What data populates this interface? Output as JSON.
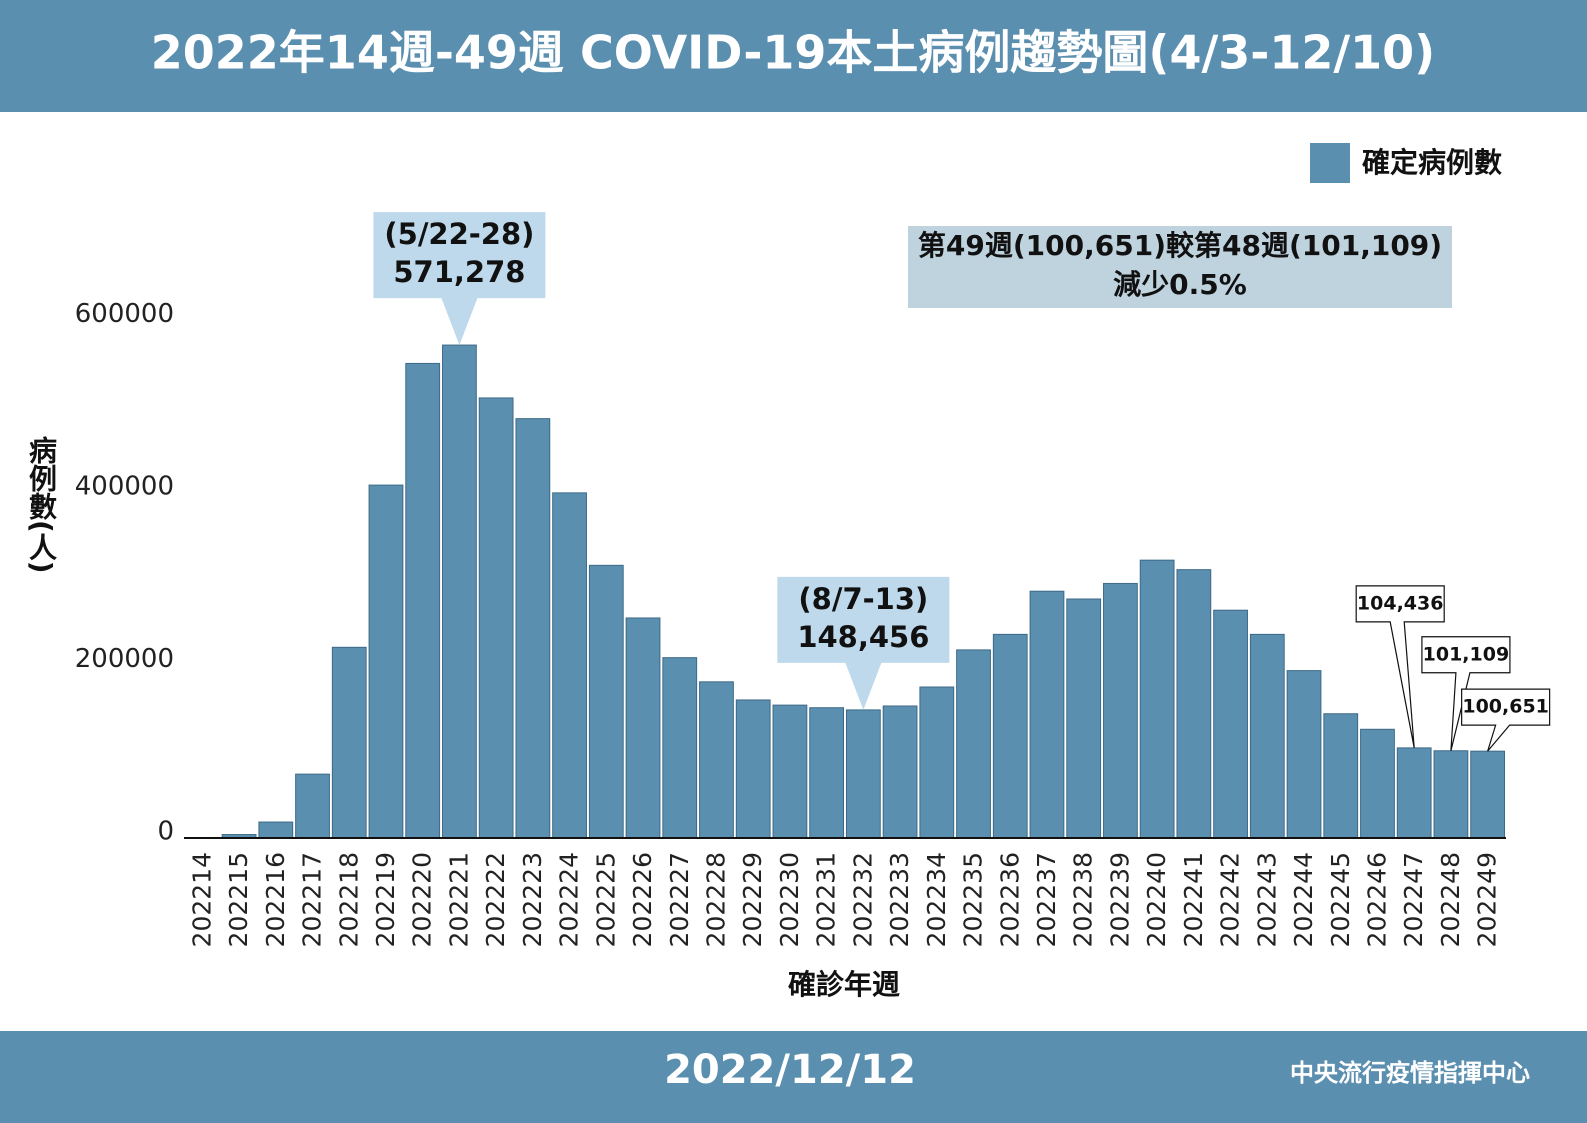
{
  "chart_data": {
    "type": "bar",
    "title": "2022年14週-49週 COVID-19本土病例趨勢圖(4/3-12/10)",
    "categories": [
      "202214",
      "202215",
      "202216",
      "202217",
      "202218",
      "202219",
      "202220",
      "202221",
      "202222",
      "202223",
      "202224",
      "202225",
      "202226",
      "202227",
      "202228",
      "202229",
      "202230",
      "202231",
      "202232",
      "202233",
      "202234",
      "202235",
      "202236",
      "202237",
      "202238",
      "202239",
      "202240",
      "202241",
      "202242",
      "202243",
      "202244",
      "202245",
      "202246",
      "202247",
      "202248",
      "202249"
    ],
    "series": [
      {
        "name": "確定病例數",
        "color": "#5b8fb0",
        "values": [
          300,
          4000,
          18500,
          74000,
          221000,
          409000,
          550000,
          571278,
          510000,
          486000,
          400000,
          316000,
          255000,
          209000,
          181000,
          160000,
          154000,
          151000,
          148456,
          153000,
          175000,
          218000,
          236000,
          286000,
          277000,
          295000,
          322000,
          311000,
          264000,
          236000,
          194000,
          144000,
          126000,
          104436,
          101109,
          100651
        ],
        "value_labels": [
          null,
          null,
          null,
          null,
          null,
          null,
          null,
          "571,278",
          null,
          null,
          null,
          null,
          null,
          null,
          null,
          null,
          null,
          null,
          "148,456",
          null,
          null,
          null,
          null,
          null,
          null,
          null,
          null,
          null,
          null,
          null,
          null,
          null,
          null,
          "104,436",
          "101,109",
          "100,651"
        ]
      }
    ],
    "annotations": [
      {
        "category": "202221",
        "text": "(5/22-28)"
      },
      {
        "category": "202232",
        "text": "(8/7-13)"
      }
    ],
    "note": [
      "第49週(100,651)較第48週(101,109)",
      "減少0.5%"
    ],
    "ylim": [
      0,
      700000
    ],
    "yticks": [
      0,
      200000,
      400000,
      600000
    ],
    "x_label": "確診年週",
    "y_label": "病例數(人)",
    "legend": "top-right",
    "grid": false
  },
  "footer": {
    "date": "2022/12/12",
    "source": "中央流行疫情指揮中心"
  }
}
